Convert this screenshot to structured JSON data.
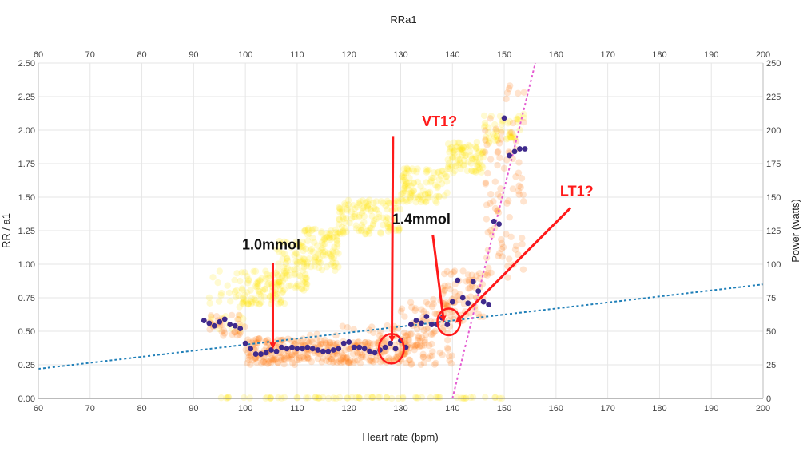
{
  "chart_data": {
    "type": "scatter",
    "title": "RRa1",
    "xlabel": "Heart rate (bpm)",
    "ylabel": "RR / a1",
    "y2label": "Power (watts)",
    "xlim": [
      60,
      200
    ],
    "ylim": [
      0,
      2.5
    ],
    "y2lim": [
      0,
      250
    ],
    "x_ticks": [
      60,
      70,
      80,
      90,
      100,
      110,
      120,
      130,
      140,
      150,
      160,
      170,
      180,
      190,
      200
    ],
    "y_ticks": [
      "0.00",
      "0.25",
      "0.50",
      "0.75",
      "1.00",
      "1.25",
      "1.50",
      "1.75",
      "2.00",
      "2.25",
      "2.50"
    ],
    "y2_ticks": [
      0,
      25,
      50,
      75,
      100,
      125,
      150,
      175,
      200,
      225,
      250
    ],
    "grid": true,
    "colors": {
      "power": "#ffe600",
      "rr": "#ff7a10",
      "a1": "#3f2a8c",
      "trend_blue": "#1f7fb8",
      "trend_pink": "#e45bd1",
      "annotation": "#ff1a1a"
    },
    "series": [
      {
        "role": "power",
        "axis": "y2",
        "clusters": [
          {
            "x": [
              93,
              100
            ],
            "y": [
              48,
              95
            ],
            "n": 35
          },
          {
            "x": [
              99,
              108
            ],
            "y": [
              70,
              95
            ],
            "n": 90
          },
          {
            "x": [
              106,
              112
            ],
            "y": [
              80,
              118
            ],
            "n": 80
          },
          {
            "x": [
              111,
              118
            ],
            "y": [
              95,
              128
            ],
            "n": 90
          },
          {
            "x": [
              118,
              130
            ],
            "y": [
              122,
              148
            ],
            "n": 120
          },
          {
            "x": [
              130,
              139
            ],
            "y": [
              145,
              172
            ],
            "n": 100
          },
          {
            "x": [
              139,
              146
            ],
            "y": [
              168,
              192
            ],
            "n": 90
          },
          {
            "x": [
              146,
              154
            ],
            "y": [
              190,
              212
            ],
            "n": 50
          },
          {
            "x": [
              95,
              150
            ],
            "y": [
              0,
              1
            ],
            "n": 70
          }
        ]
      },
      {
        "role": "rr",
        "axis": "y",
        "clusters": [
          {
            "x": [
              93,
              100
            ],
            "y": [
              0.45,
              0.62
            ],
            "n": 30
          },
          {
            "x": [
              100,
              113
            ],
            "y": [
              0.25,
              0.45
            ],
            "n": 140
          },
          {
            "x": [
              113,
              125
            ],
            "y": [
              0.26,
              0.42
            ],
            "n": 110
          },
          {
            "x": [
              125,
              132
            ],
            "y": [
              0.26,
              0.48
            ],
            "n": 60
          },
          {
            "x": [
              130,
              140
            ],
            "y": [
              0.25,
              0.75
            ],
            "n": 100
          },
          {
            "x": [
              138,
              146
            ],
            "y": [
              0.55,
              0.95
            ],
            "n": 70
          },
          {
            "x": [
              146,
              154
            ],
            "y": [
              0.9,
              2.35
            ],
            "n": 90
          },
          {
            "x": [
              112,
              135
            ],
            "y": [
              0.38,
              0.55
            ],
            "n": 40
          }
        ]
      },
      {
        "role": "a1",
        "axis": "y",
        "x": [
          92,
          93,
          94,
          95,
          96,
          97,
          98,
          99,
          100,
          101,
          102,
          103,
          104,
          105,
          106,
          107,
          108,
          109,
          110,
          111,
          112,
          113,
          114,
          115,
          116,
          117,
          118,
          119,
          120,
          121,
          122,
          123,
          124,
          125,
          126,
          127,
          128,
          129,
          130,
          131,
          132,
          133,
          134,
          135,
          136,
          137,
          138,
          139,
          140,
          141,
          142,
          143,
          144,
          145,
          146,
          147,
          148,
          149,
          150,
          151,
          152,
          153,
          154
        ],
        "y": [
          0.58,
          0.56,
          0.54,
          0.57,
          0.59,
          0.55,
          0.54,
          0.52,
          0.41,
          0.37,
          0.33,
          0.33,
          0.34,
          0.36,
          0.35,
          0.38,
          0.37,
          0.38,
          0.37,
          0.37,
          0.38,
          0.37,
          0.36,
          0.35,
          0.35,
          0.36,
          0.37,
          0.41,
          0.42,
          0.38,
          0.38,
          0.37,
          0.35,
          0.34,
          0.36,
          0.38,
          0.41,
          0.37,
          0.43,
          0.38,
          0.55,
          0.58,
          0.56,
          0.61,
          0.55,
          0.55,
          0.6,
          0.55,
          0.72,
          0.88,
          0.75,
          0.71,
          0.87,
          0.8,
          0.72,
          0.7,
          1.32,
          1.3,
          2.09,
          1.81,
          1.84,
          1.86,
          1.86
        ]
      }
    ],
    "trend_lines": [
      {
        "role": "trend_blue",
        "from": [
          60,
          0.22
        ],
        "to": [
          200,
          0.85
        ]
      },
      {
        "role": "trend_pink",
        "from": [
          140,
          0.0
        ],
        "to": [
          156,
          2.5
        ]
      }
    ],
    "annotations": [
      {
        "text": "VT1?",
        "color": "red",
        "label_at": [
          137.5,
          2.03
        ],
        "arrow_from": [
          128.5,
          1.95
        ],
        "arrow_to": [
          128.3,
          0.43
        ],
        "circle": {
          "cx": 128.2,
          "cy": 0.37,
          "r": 0.11
        }
      },
      {
        "text": "LT1?",
        "color": "red",
        "label_at": [
          164,
          1.51
        ],
        "arrow_from": [
          162.8,
          1.42
        ],
        "arrow_to": [
          140.8,
          0.57
        ],
        "circle": {
          "cx": 139.3,
          "cy": 0.57,
          "r": 0.1
        }
      },
      {
        "text": "1.4mmol",
        "color": "black",
        "label_at": [
          134.0,
          1.3
        ],
        "arrow_from": [
          136.2,
          1.22
        ],
        "arrow_to": [
          138.3,
          0.58
        ]
      },
      {
        "text": "1.0mmol",
        "color": "black",
        "label_at": [
          105.0,
          1.11
        ],
        "arrow_from": [
          105.3,
          1.01
        ],
        "arrow_to": [
          105.3,
          0.38
        ]
      }
    ]
  }
}
